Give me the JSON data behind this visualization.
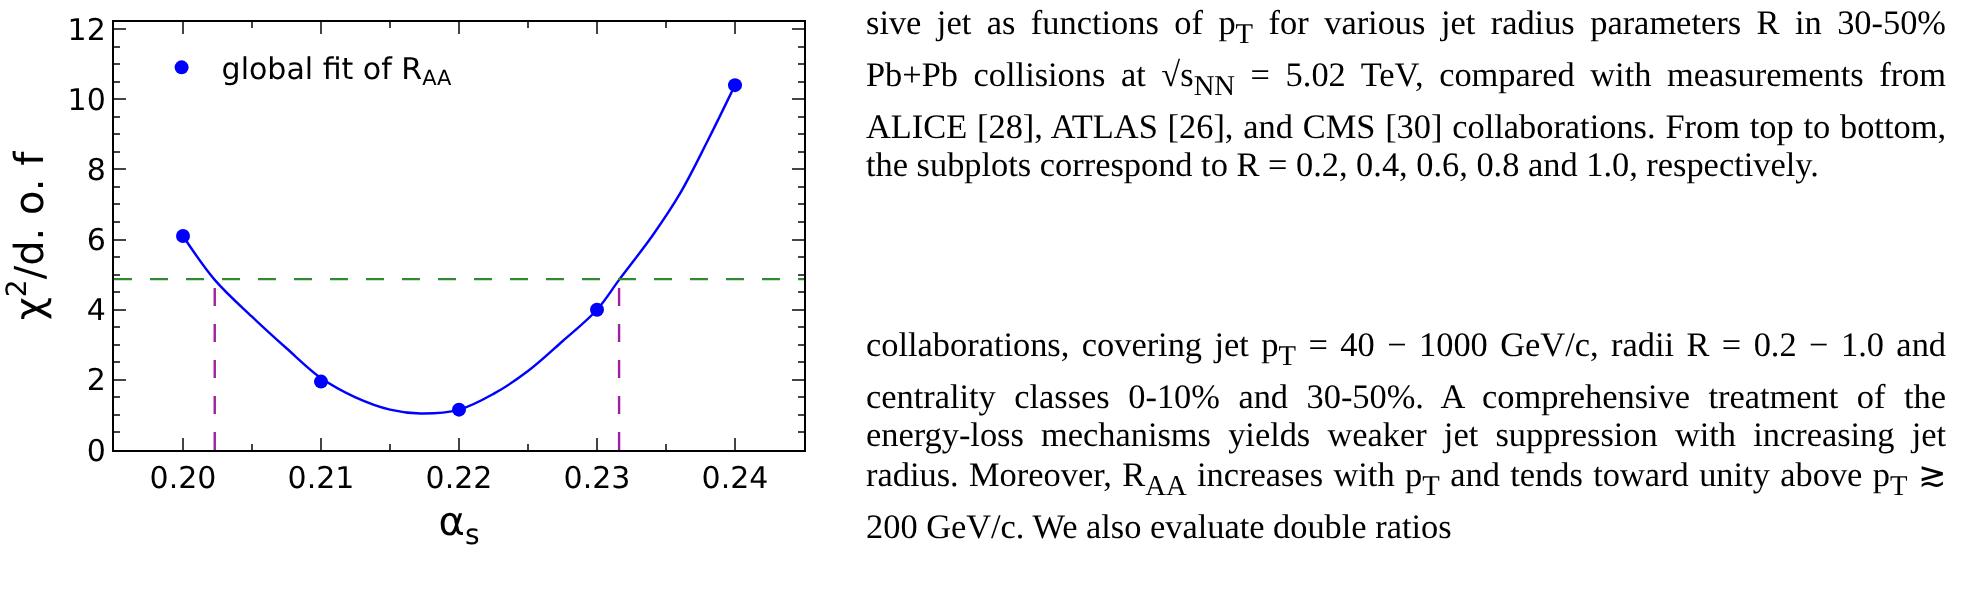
{
  "chart_data": {
    "type": "scatter",
    "xlabel": "α$_{s}$",
    "ylabel": "χ$^{2}$/d. o. f",
    "xlim": [
      0.195,
      0.245
    ],
    "xticks": [
      {
        "value": 0.2,
        "label": "0.20"
      },
      0.21,
      0.22,
      0.23,
      0.24
    ],
    "ylim": [
      0,
      12.2
    ],
    "yticks": [
      0,
      2,
      4,
      6,
      8,
      10,
      12
    ],
    "grid": false,
    "legend": "top left",
    "marker": "circle",
    "series": [
      {
        "name": "global fit of R$_{AA}$",
        "color": "#0000ff",
        "x": [
          0.2,
          0.21,
          0.22,
          0.23,
          0.24
        ],
        "values": [
          6.1,
          1.95,
          1.15,
          4.0,
          10.4
        ]
      },
      {
        "type": "line",
        "color": "#0000ff",
        "marker": "none",
        "line_style": "solid",
        "x": [
          0.2,
          0.2023,
          0.205,
          0.2075,
          0.21,
          0.2125,
          0.215,
          0.2172,
          0.22,
          0.2225,
          0.225,
          0.2275,
          0.23,
          0.2316,
          0.234,
          0.236,
          0.238,
          0.24
        ],
        "values": [
          6.1,
          4.85,
          3.8,
          2.9,
          2.05,
          1.5,
          1.15,
          1.04,
          1.15,
          1.6,
          2.25,
          3.1,
          4.0,
          4.85,
          6.1,
          7.3,
          8.8,
          10.4
        ]
      }
    ],
    "ref_lines": [
      {
        "axis": "y",
        "value": 4.87,
        "color": "#2e8b2e",
        "line_style": "dashed"
      },
      {
        "axis": "x",
        "value": 0.2023,
        "color": "#a020a0",
        "line_style": "dashed"
      },
      {
        "axis": "x",
        "value": 0.2316,
        "color": "#a020a0",
        "line_style": "dashed"
      }
    ],
    "annotations": [
      "sive jet as functions of p$_{T}$ for various jet radius parameters R in 30-50% Pb+Pb collisions at √s$_{NN}$ = 5.02 TeV, compared with measurements from ALICE [28], ATLAS [26], and CMS [30] collaborations. From top to bottom, the subplots correspond to R = 0.2, 0.4, 0.6, 0.8 and 1.0, respectively.",
      "collaborations, covering jet p$_{T}$ = 40 − 1000 GeV/c, radii R = 0.2 − 1.0 and centrality classes 0-10% and 30-50%. A comprehensive treatment of the energy-loss mechanisms yields weaker jet suppression with increasing jet radius. Moreover, R$_{AA}$ increases with p$_{T}$ and tends toward unity above p$_{T}$ ≳ 200 GeV/c. We also evaluate double ratios"
    ]
  }
}
